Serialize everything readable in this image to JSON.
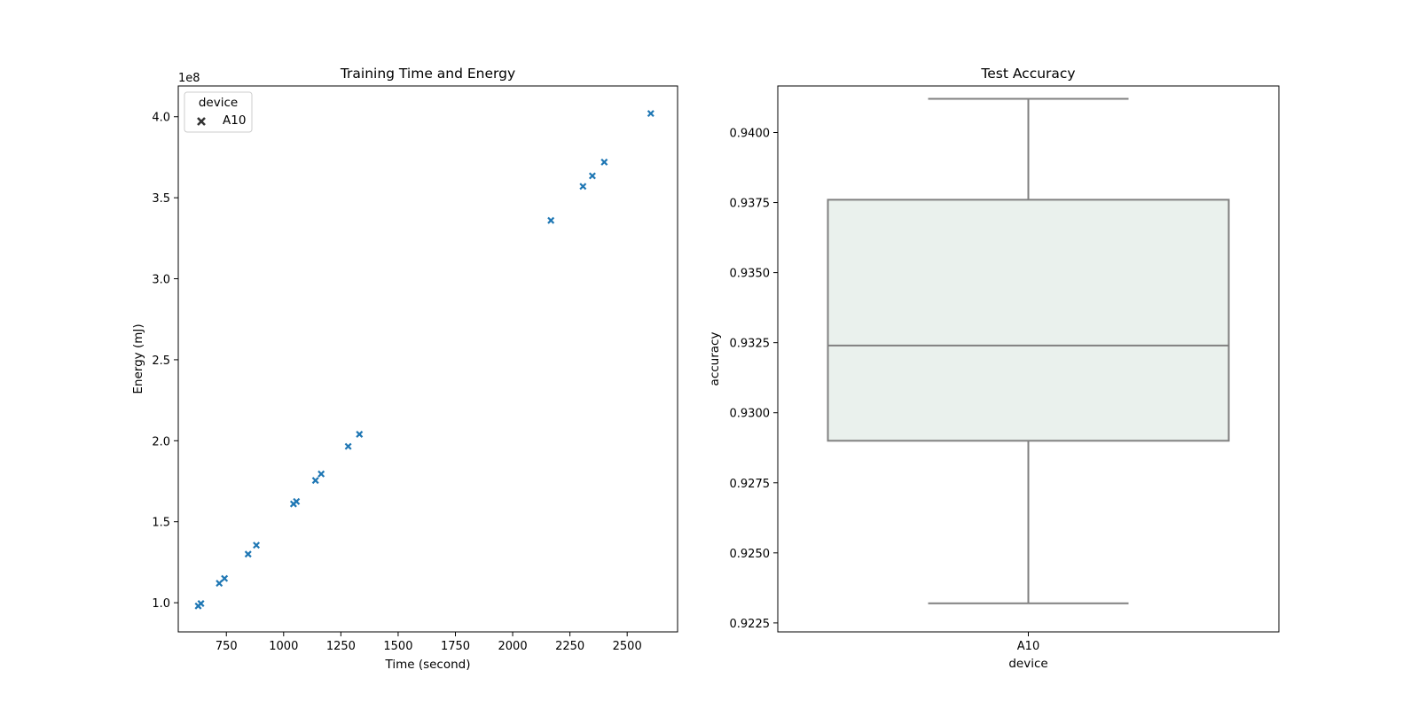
{
  "chart_data": [
    {
      "type": "scatter",
      "title": "Training Time and Energy",
      "xlabel": "Time (second)",
      "ylabel": "Energy (mJ)",
      "y_offset_label": "1e8",
      "xlim": [
        540,
        2720
      ],
      "ylim": [
        0.82,
        4.19
      ],
      "y_scale": "1e8",
      "xticks": [
        750,
        1000,
        1250,
        1500,
        1750,
        2000,
        2250,
        2500
      ],
      "yticks": [
        1.0,
        1.5,
        2.0,
        2.5,
        3.0,
        3.5,
        4.0
      ],
      "grid": false,
      "marker": "x",
      "color": "#1f77b4",
      "legend": {
        "title": "device",
        "entries": [
          "A10"
        ],
        "placement": "upper left"
      },
      "series": [
        {
          "name": "A10",
          "x": [
            627,
            639,
            719,
            742,
            845,
            881,
            1043,
            1056,
            1139,
            1164,
            1282,
            1331,
            2167,
            2307,
            2348,
            2400,
            2603
          ],
          "y": [
            0.98,
            0.995,
            1.12,
            1.15,
            1.3,
            1.355,
            1.61,
            1.625,
            1.755,
            1.795,
            1.965,
            2.04,
            3.36,
            3.57,
            3.635,
            3.72,
            4.02
          ]
        }
      ]
    },
    {
      "type": "box",
      "title": "Test Accuracy",
      "xlabel": "device",
      "ylabel": "accuracy",
      "categories": [
        "A10"
      ],
      "ylim": [
        0.92218,
        0.94166
      ],
      "yticks": [
        "0.9225",
        "0.9250",
        "0.9275",
        "0.9300",
        "0.9325",
        "0.9350",
        "0.9375",
        "0.9400"
      ],
      "grid": false,
      "box_fill": "#eaf1ed",
      "line_color": "#808080",
      "boxes": [
        {
          "category": "A10",
          "whisker_low": 0.9232,
          "q1": 0.929,
          "median": 0.9324,
          "q3": 0.9376,
          "whisker_high": 0.9412
        }
      ]
    }
  ]
}
